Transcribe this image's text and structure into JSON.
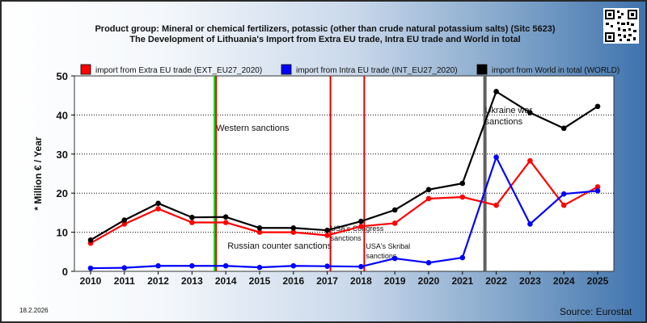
{
  "header": {
    "title_line1": "Product group: Mineral or chemical fertilizers, potassic (other than crude natural potassium salts) (Sitc 5623)",
    "title_line2": "The Development of Lithuania's Import from Extra EU trade, Intra EU trade and World in total"
  },
  "footer": {
    "date": "18.2.2026",
    "source": "Source: Eurostat"
  },
  "colors": {
    "extra_eu": "#ff0000",
    "intra_eu": "#0000ff",
    "world": "#000000",
    "sanction_line": "#e00000",
    "western_sanctions_line": "#00dd00",
    "ukraine_war_line": "#606060"
  },
  "chart_data": {
    "type": "line",
    "ylabel": "* Million € / Year",
    "xlabel": "",
    "ylim": [
      0,
      50
    ],
    "yticks": [
      0,
      10,
      20,
      30,
      40,
      50
    ],
    "grid": true,
    "legend_position": "top",
    "x": [
      "2010",
      "2011",
      "2012",
      "2013",
      "2014",
      "2015",
      "2016",
      "2017",
      "2018",
      "2019",
      "2020",
      "2021",
      "2022",
      "2023",
      "2024",
      "2025"
    ],
    "series": [
      {
        "name": "import from Extra EU trade (EXT_EU27_2020)",
        "color": "#ff0000",
        "values": [
          7.2,
          12.1,
          16.0,
          12.5,
          12.5,
          10.0,
          10.0,
          9.2,
          11.5,
          12.3,
          18.6,
          19.0,
          16.9,
          28.3,
          16.9,
          21.6
        ]
      },
      {
        "name": "import from Intra EU trade (INT_EU27_2020)",
        "color": "#0000ff",
        "values": [
          0.8,
          0.9,
          1.4,
          1.4,
          1.4,
          1.0,
          1.4,
          1.3,
          1.2,
          3.3,
          2.2,
          3.5,
          29.2,
          12.1,
          19.8,
          20.6
        ]
      },
      {
        "name": "import from World in total (WORLD)",
        "color": "#000000",
        "values": [
          8.0,
          13.1,
          17.4,
          13.8,
          13.9,
          11.1,
          11.1,
          10.5,
          12.8,
          15.7,
          20.9,
          22.5,
          46.0,
          40.6,
          36.6,
          42.2
        ]
      }
    ],
    "events": [
      {
        "label": "Western sanctions",
        "year": 2014,
        "color": "#00dd00"
      },
      {
        "label": "Russian counter sanctions",
        "year": 2014,
        "color": "#e00000"
      },
      {
        "label": "USA's Congress sanctions",
        "year": 2017,
        "color": "#e00000"
      },
      {
        "label": "USA's Skribal sanctions",
        "year": 2018,
        "color": "#e00000"
      },
      {
        "label": "Ukraine war sanctions",
        "year": 2022,
        "color": "#606060"
      }
    ]
  }
}
